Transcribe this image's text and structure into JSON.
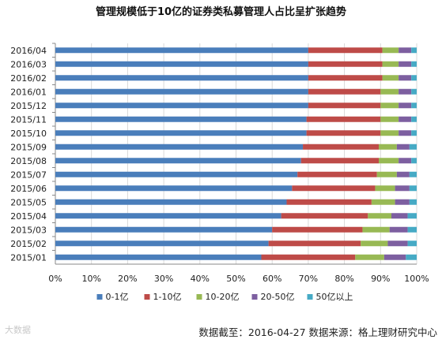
{
  "chart_data": {
    "type": "bar",
    "orientation": "horizontal",
    "stacked": true,
    "title": "管理规模低于10亿的证券类私募管理人占比呈扩张趋势",
    "categories": [
      "2016/04",
      "2016/03",
      "2016/02",
      "2016/01",
      "2015/12",
      "2015/11",
      "2015/10",
      "2015/09",
      "2015/08",
      "2015/07",
      "2015/06",
      "2015/05",
      "2015/04",
      "2015/03",
      "2015/02",
      "2015/01"
    ],
    "series": [
      {
        "name": "0-1亿",
        "color": "#4a7ebb",
        "values": [
          70.0,
          70.0,
          70.0,
          70.0,
          70.0,
          69.5,
          69.5,
          68.5,
          68.0,
          67.0,
          65.5,
          64.0,
          62.5,
          60.0,
          59.0,
          57.0
        ]
      },
      {
        "name": "1-10亿",
        "color": "#be4b48",
        "values": [
          20.5,
          20.5,
          20.5,
          20.0,
          20.0,
          20.5,
          20.5,
          21.0,
          21.5,
          22.0,
          23.0,
          23.5,
          24.0,
          25.0,
          25.5,
          26.0
        ]
      },
      {
        "name": "10-20亿",
        "color": "#98b954",
        "values": [
          4.5,
          4.5,
          4.5,
          5.0,
          5.0,
          5.0,
          5.0,
          5.0,
          5.5,
          5.5,
          5.5,
          6.5,
          6.5,
          7.5,
          7.5,
          8.0
        ]
      },
      {
        "name": "20-50亿",
        "color": "#7d5fa0",
        "values": [
          3.5,
          3.5,
          3.5,
          3.5,
          3.5,
          3.5,
          3.5,
          3.5,
          3.5,
          3.5,
          4.0,
          4.0,
          4.5,
          5.0,
          5.5,
          6.0
        ]
      },
      {
        "name": "50亿以上",
        "color": "#46aac5",
        "values": [
          1.5,
          1.5,
          1.5,
          1.5,
          1.5,
          1.5,
          1.5,
          2.0,
          1.5,
          2.0,
          2.0,
          2.0,
          2.5,
          2.5,
          2.5,
          3.0
        ]
      }
    ],
    "x_ticks": [
      "0%",
      "10%",
      "20%",
      "30%",
      "40%",
      "50%",
      "60%",
      "70%",
      "80%",
      "90%",
      "100%"
    ],
    "xlim": [
      0,
      100
    ],
    "grid": true,
    "legend_position": "bottom"
  },
  "footer_text": "数据截至：2016-04-27 数据来源：格上理财研究中心",
  "watermark_text": "大数据"
}
